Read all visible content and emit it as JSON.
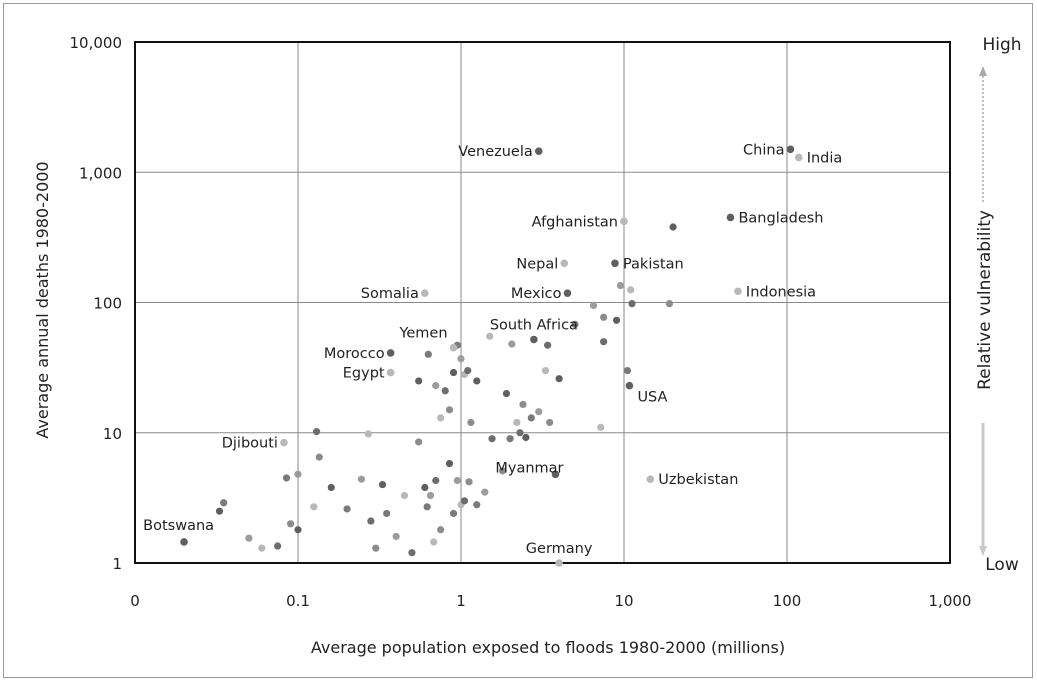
{
  "chart_data": {
    "type": "scatter",
    "x_scale": "log",
    "y_scale": "log",
    "xlabel": "Average population exposed to floods 1980-2000 (millions)",
    "ylabel": "Average annual deaths 1980-2000",
    "x_tick_labels": [
      "0",
      "0.1",
      "1",
      "10",
      "100",
      "1,000"
    ],
    "y_tick_labels": [
      "1",
      "10",
      "100",
      "1,000",
      "10,000"
    ],
    "xlim": [
      0.01,
      1000
    ],
    "ylim": [
      1,
      10000
    ],
    "grid": true,
    "right_axis": {
      "top": "High",
      "bottom": "Low",
      "title": "Relative vulnerability"
    },
    "labeled_points": [
      {
        "name": "China",
        "x": 105,
        "y": 1500
      },
      {
        "name": "India",
        "x": 118,
        "y": 1300
      },
      {
        "name": "Venezuela",
        "x": 3.0,
        "y": 1450
      },
      {
        "name": "Afghanistan",
        "x": 10,
        "y": 420
      },
      {
        "name": "Bangladesh",
        "x": 45,
        "y": 450
      },
      {
        "name": "Nepal",
        "x": 4.3,
        "y": 200
      },
      {
        "name": "Pakistan",
        "x": 8.8,
        "y": 200
      },
      {
        "name": "Somalia",
        "x": 0.6,
        "y": 118
      },
      {
        "name": "Mexico",
        "x": 4.5,
        "y": 118
      },
      {
        "name": "Indonesia",
        "x": 50,
        "y": 122
      },
      {
        "name": "South Africa",
        "x": 2.8,
        "y": 52
      },
      {
        "name": "Yemen",
        "x": 0.9,
        "y": 45
      },
      {
        "name": "Morocco",
        "x": 0.37,
        "y": 41
      },
      {
        "name": "Egypt",
        "x": 0.37,
        "y": 29
      },
      {
        "name": "USA",
        "x": 10.8,
        "y": 23
      },
      {
        "name": "Djibouti",
        "x": 0.082,
        "y": 8.4
      },
      {
        "name": "Myanmar",
        "x": 3.8,
        "y": 4.8
      },
      {
        "name": "Uzbekistan",
        "x": 14.5,
        "y": 4.4
      },
      {
        "name": "Botswana",
        "x": 0.02,
        "y": 1.45
      },
      {
        "name": "Germany",
        "x": 4.0,
        "y": 1.0
      }
    ],
    "unlabeled_points": [
      [
        0.033,
        2.5
      ],
      [
        0.035,
        2.9
      ],
      [
        0.05,
        1.55
      ],
      [
        0.06,
        1.3
      ],
      [
        0.075,
        1.35
      ],
      [
        0.09,
        2.0
      ],
      [
        0.1,
        1.8
      ],
      [
        0.085,
        4.5
      ],
      [
        0.1,
        4.8
      ],
      [
        0.125,
        2.7
      ],
      [
        0.13,
        10.2
      ],
      [
        0.135,
        6.5
      ],
      [
        0.16,
        3.8
      ],
      [
        0.2,
        2.6
      ],
      [
        0.245,
        4.4
      ],
      [
        0.27,
        9.8
      ],
      [
        0.28,
        2.1
      ],
      [
        0.3,
        1.3
      ],
      [
        0.33,
        4.0
      ],
      [
        0.35,
        2.4
      ],
      [
        0.4,
        1.6
      ],
      [
        0.45,
        3.3
      ],
      [
        0.5,
        1.2
      ],
      [
        0.55,
        8.5
      ],
      [
        0.6,
        3.8
      ],
      [
        0.62,
        2.7
      ],
      [
        0.65,
        3.3
      ],
      [
        0.68,
        1.45
      ],
      [
        0.7,
        4.3
      ],
      [
        0.75,
        1.8
      ],
      [
        0.85,
        5.8
      ],
      [
        0.9,
        2.4
      ],
      [
        0.95,
        4.3
      ],
      [
        1.0,
        2.8
      ],
      [
        1.05,
        3.0
      ],
      [
        1.12,
        4.2
      ],
      [
        0.55,
        25
      ],
      [
        0.63,
        40
      ],
      [
        0.7,
        23
      ],
      [
        0.75,
        13
      ],
      [
        0.8,
        21
      ],
      [
        0.85,
        15
      ],
      [
        0.9,
        29
      ],
      [
        0.95,
        47
      ],
      [
        1.0,
        37
      ],
      [
        1.05,
        28
      ],
      [
        1.1,
        30
      ],
      [
        1.15,
        12
      ],
      [
        1.25,
        25
      ],
      [
        1.25,
        2.8
      ],
      [
        1.4,
        3.5
      ],
      [
        1.5,
        55
      ],
      [
        1.55,
        9.0
      ],
      [
        1.8,
        5.1
      ],
      [
        1.9,
        20
      ],
      [
        2.0,
        9.0
      ],
      [
        2.05,
        48
      ],
      [
        2.2,
        12
      ],
      [
        2.3,
        10
      ],
      [
        2.4,
        16.5
      ],
      [
        2.5,
        9.2
      ],
      [
        2.7,
        13
      ],
      [
        3.0,
        14.5
      ],
      [
        3.3,
        30
      ],
      [
        3.4,
        47
      ],
      [
        3.5,
        12
      ],
      [
        4.0,
        26
      ],
      [
        5.0,
        68
      ],
      [
        6.5,
        95
      ],
      [
        7.2,
        11
      ],
      [
        7.5,
        50
      ],
      [
        7.5,
        77
      ],
      [
        9.0,
        73
      ],
      [
        10.5,
        30
      ],
      [
        9.5,
        135
      ],
      [
        11,
        125
      ],
      [
        11.2,
        98
      ],
      [
        19,
        98
      ],
      [
        20,
        380
      ]
    ]
  }
}
